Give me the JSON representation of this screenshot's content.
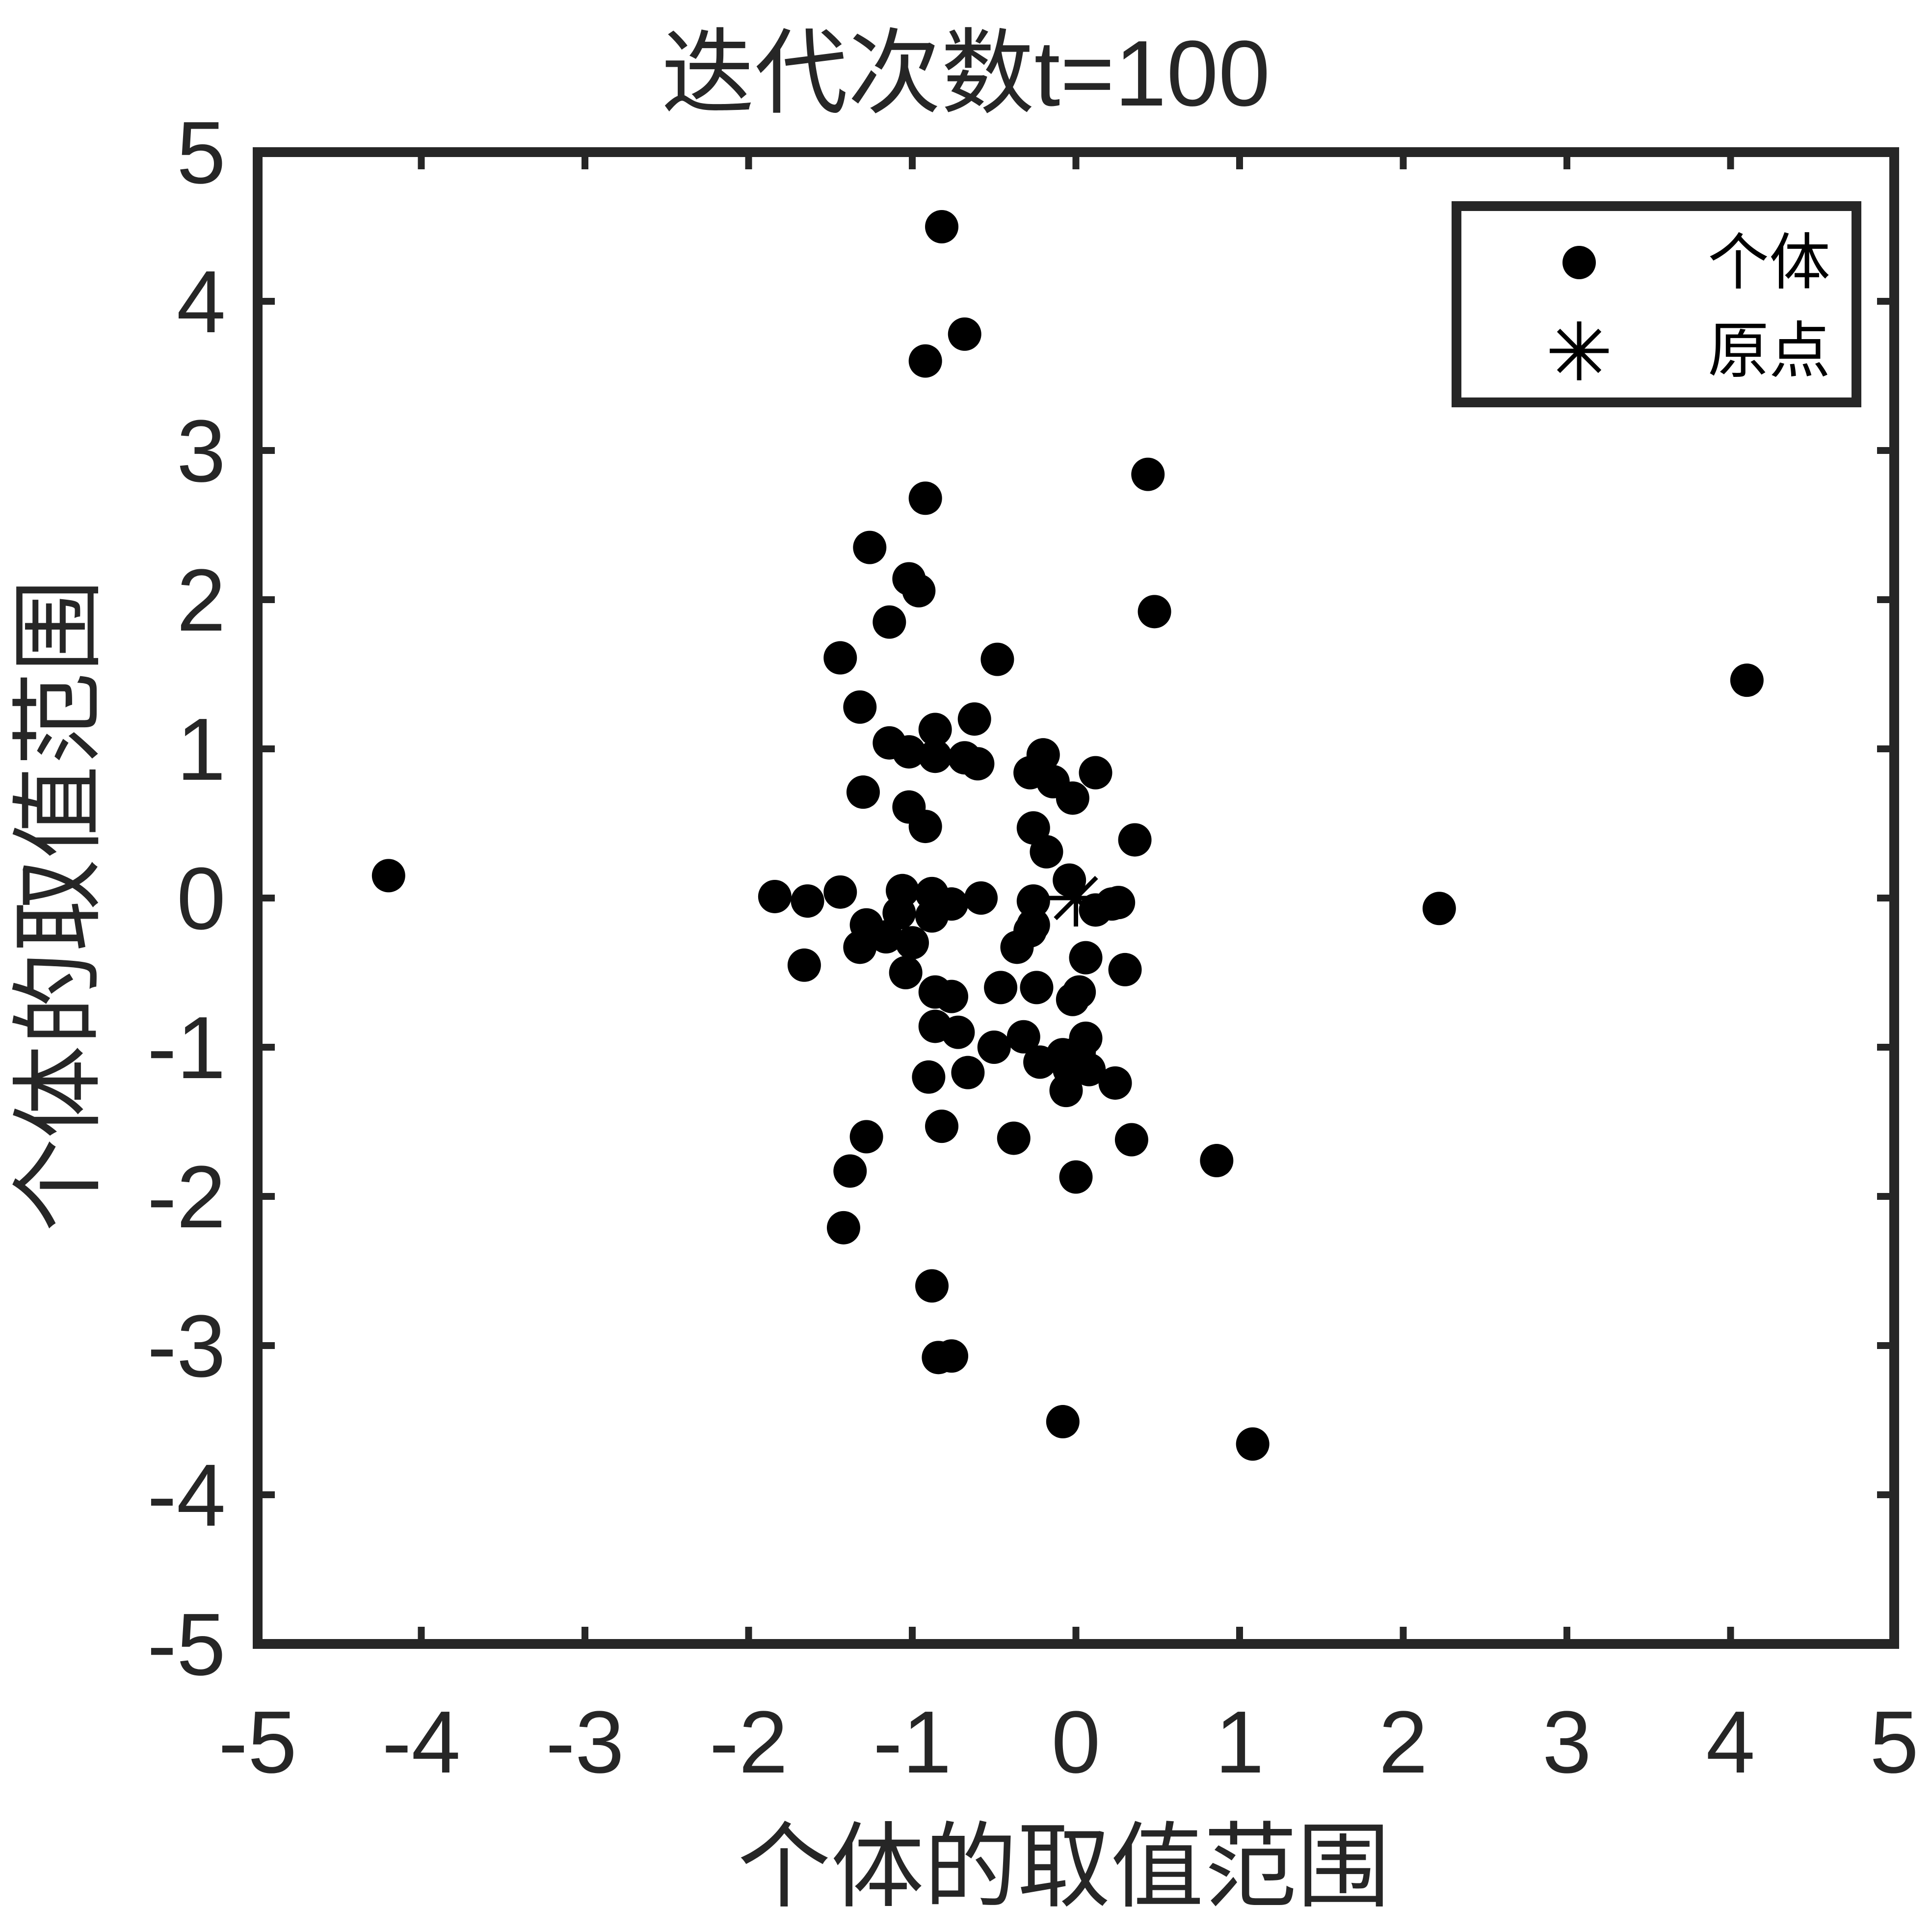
{
  "chart_data": {
    "type": "scatter",
    "title": "迭代次数t=100",
    "xlabel": "个体的取值范围",
    "ylabel": "个体的取值范围",
    "xlim": [
      -5,
      5
    ],
    "ylim": [
      -5,
      5
    ],
    "xticks": [
      -5,
      -4,
      -3,
      -2,
      -1,
      0,
      1,
      2,
      3,
      4,
      5
    ],
    "yticks": [
      -5,
      -4,
      -3,
      -2,
      -1,
      0,
      1,
      2,
      3,
      4,
      5
    ],
    "xtick_labels": [
      "-5",
      "-4",
      "-3",
      "-2",
      "-1",
      "0",
      "1",
      "2",
      "3",
      "4",
      "5"
    ],
    "ytick_labels": [
      "-5",
      "-4",
      "-3",
      "-2",
      "-1",
      "0",
      "1",
      "2",
      "3",
      "4",
      "5"
    ],
    "grid": false,
    "legend_position": "top-right",
    "series": [
      {
        "name": "个体",
        "marker": "filled-circle",
        "color": "#000000",
        "points": [
          [
            -4.2,
            0.15
          ],
          [
            -0.82,
            4.5
          ],
          [
            -0.68,
            3.78
          ],
          [
            -0.92,
            3.6
          ],
          [
            -0.92,
            2.68
          ],
          [
            0.44,
            2.84
          ],
          [
            0.48,
            1.92
          ],
          [
            -1.26,
            2.35
          ],
          [
            -1.02,
            2.14
          ],
          [
            -0.96,
            2.06
          ],
          [
            -1.14,
            1.85
          ],
          [
            -0.48,
            1.6
          ],
          [
            -1.44,
            1.61
          ],
          [
            -1.32,
            1.28
          ],
          [
            -0.62,
            1.2
          ],
          [
            -0.86,
            1.13
          ],
          [
            -1.14,
            1.04
          ],
          [
            -1.02,
            0.98
          ],
          [
            -0.86,
            0.95
          ],
          [
            -0.68,
            0.94
          ],
          [
            -0.6,
            0.9
          ],
          [
            -0.2,
            0.96
          ],
          [
            -0.28,
            0.84
          ],
          [
            -0.14,
            0.78
          ],
          [
            0.12,
            0.84
          ],
          [
            -0.02,
            0.67
          ],
          [
            -1.3,
            0.71
          ],
          [
            -1.02,
            0.61
          ],
          [
            -0.92,
            0.48
          ],
          [
            -0.26,
            0.47
          ],
          [
            -0.18,
            0.31
          ],
          [
            0.36,
            0.39
          ],
          [
            -1.84,
            0.01
          ],
          [
            -1.64,
            -0.02
          ],
          [
            -1.44,
            0.04
          ],
          [
            -1.06,
            0.05
          ],
          [
            -0.88,
            0.03
          ],
          [
            -0.76,
            -0.04
          ],
          [
            -0.58,
            0.0
          ],
          [
            -0.26,
            -0.02
          ],
          [
            -1.08,
            -0.1
          ],
          [
            -0.88,
            -0.12
          ],
          [
            -1.28,
            -0.18
          ],
          [
            -1.16,
            -0.26
          ],
          [
            -1.32,
            -0.33
          ],
          [
            -1.0,
            -0.3
          ],
          [
            -0.26,
            -0.18
          ],
          [
            -0.28,
            -0.22
          ],
          [
            -0.36,
            -0.33
          ],
          [
            -0.04,
            0.12
          ],
          [
            0.12,
            -0.08
          ],
          [
            0.22,
            -0.04
          ],
          [
            0.26,
            -0.03
          ],
          [
            0.06,
            -0.4
          ],
          [
            0.3,
            -0.48
          ],
          [
            -1.66,
            -0.45
          ],
          [
            -1.04,
            -0.5
          ],
          [
            -0.86,
            -0.63
          ],
          [
            -0.76,
            -0.66
          ],
          [
            -0.46,
            -0.6
          ],
          [
            -0.24,
            -0.6
          ],
          [
            0.02,
            -0.63
          ],
          [
            -0.02,
            -0.68
          ],
          [
            -0.86,
            -0.86
          ],
          [
            -0.72,
            -0.9
          ],
          [
            -0.32,
            -0.93
          ],
          [
            -0.5,
            -1.0
          ],
          [
            -0.22,
            -1.1
          ],
          [
            -0.08,
            -1.05
          ],
          [
            0.06,
            -0.94
          ],
          [
            0.02,
            -1.03
          ],
          [
            -0.04,
            -1.15
          ],
          [
            0.08,
            -1.15
          ],
          [
            -0.06,
            -1.29
          ],
          [
            0.24,
            -1.24
          ],
          [
            -0.9,
            -1.2
          ],
          [
            -0.66,
            -1.17
          ],
          [
            -0.82,
            -1.53
          ],
          [
            -1.28,
            -1.6
          ],
          [
            -1.38,
            -1.83
          ],
          [
            -0.38,
            -1.61
          ],
          [
            0.34,
            -1.62
          ],
          [
            0.0,
            -1.87
          ],
          [
            0.86,
            -1.76
          ],
          [
            -1.42,
            -2.21
          ],
          [
            -0.88,
            -2.6
          ],
          [
            -0.84,
            -3.08
          ],
          [
            -0.76,
            -3.07
          ],
          [
            -0.08,
            -3.51
          ],
          [
            1.08,
            -3.66
          ],
          [
            2.22,
            -0.07
          ],
          [
            4.1,
            1.46
          ]
        ]
      },
      {
        "name": "原点",
        "marker": "asterisk",
        "color": "#000000",
        "points": [
          [
            0,
            0
          ]
        ]
      }
    ]
  }
}
